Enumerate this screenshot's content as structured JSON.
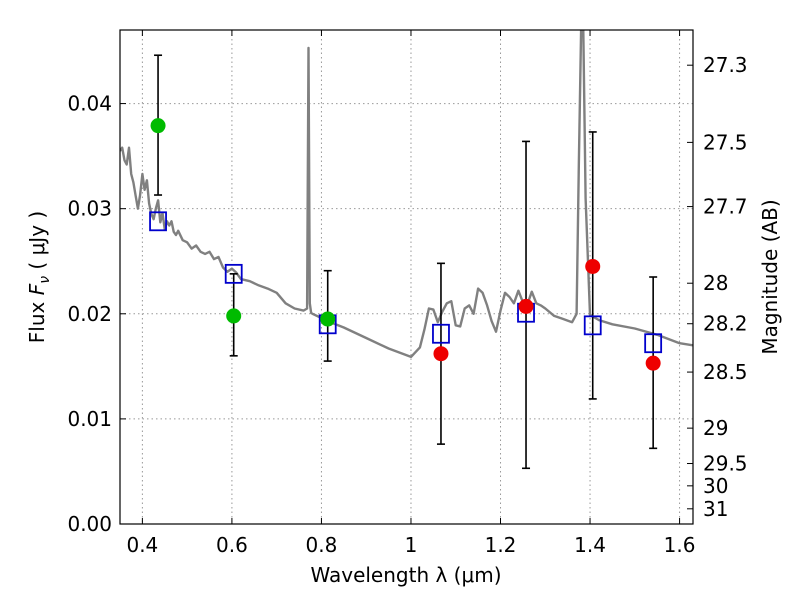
{
  "chart_data": {
    "type": "scatter",
    "xlabel": "Wavelength  λ (μm)",
    "ylabel": "Flux  F_ν  ( μJy )",
    "ylabel_parts": {
      "pre": "Flux  ",
      "sym": "F",
      "sub": "ν",
      "post": "  ( μJy )"
    },
    "y2label": "Magnitude (AB)",
    "xlim": [
      0.35,
      1.63
    ],
    "ylim": [
      0.0,
      0.047
    ],
    "grid": true,
    "x_ticks": [
      0.4,
      0.6,
      0.8,
      1.0,
      1.2,
      1.4,
      1.6
    ],
    "x_tick_labels": [
      "0.4",
      "0.6",
      "0.8",
      "1",
      "1.2",
      "1.4",
      "1.6"
    ],
    "y_ticks": [
      0.0,
      0.01,
      0.02,
      0.03,
      0.04
    ],
    "y_tick_labels": [
      "0.00",
      "0.01",
      "0.02",
      "0.03",
      "0.04"
    ],
    "y2_ticks": [
      "27.3",
      "27.5",
      "27.7",
      "28",
      "28.2",
      "28.5",
      "29",
      "29.5",
      "30",
      "31"
    ],
    "colors": {
      "model": "#808080",
      "model_points": "#0000cc",
      "detections": "#00bb00",
      "upper": "#ee0000",
      "errorbar": "#000000",
      "grid": "#999999"
    },
    "errorbars": [
      {
        "x": 0.435,
        "low": 0.0313,
        "high": 0.0446
      },
      {
        "x": 0.604,
        "low": 0.016,
        "high": 0.0238
      },
      {
        "x": 0.814,
        "low": 0.0155,
        "high": 0.0241
      },
      {
        "x": 1.067,
        "low": 0.0076,
        "high": 0.0248
      },
      {
        "x": 1.257,
        "low": 0.0053,
        "high": 0.0364
      },
      {
        "x": 1.406,
        "low": 0.0119,
        "high": 0.0373
      },
      {
        "x": 1.541,
        "low": 0.0072,
        "high": 0.0235
      }
    ],
    "series": [
      {
        "kind": "line",
        "x": [
          0.35,
          0.355,
          0.36,
          0.365,
          0.37,
          0.375,
          0.38,
          0.385,
          0.39,
          0.395,
          0.4,
          0.405,
          0.41,
          0.415,
          0.42,
          0.425,
          0.43,
          0.435,
          0.44,
          0.445,
          0.45,
          0.455,
          0.46,
          0.465,
          0.47,
          0.475,
          0.48,
          0.49,
          0.5,
          0.51,
          0.52,
          0.53,
          0.54,
          0.55,
          0.56,
          0.57,
          0.58,
          0.59,
          0.6,
          0.61,
          0.62,
          0.64,
          0.66,
          0.68,
          0.7,
          0.72,
          0.74,
          0.76,
          0.768,
          0.771,
          0.774,
          0.777,
          0.78,
          0.8,
          0.82,
          0.85,
          0.9,
          0.95,
          1.0,
          1.02,
          1.03,
          1.04,
          1.05,
          1.06,
          1.07,
          1.08,
          1.09,
          1.1,
          1.11,
          1.12,
          1.13,
          1.14,
          1.15,
          1.16,
          1.17,
          1.18,
          1.19,
          1.2,
          1.21,
          1.22,
          1.23,
          1.24,
          1.25,
          1.26,
          1.27,
          1.28,
          1.29,
          1.3,
          1.32,
          1.34,
          1.36,
          1.37,
          1.375,
          1.38,
          1.385,
          1.39,
          1.4,
          1.42,
          1.45,
          1.5,
          1.55,
          1.6,
          1.63
        ],
        "y": [
          0.0355,
          0.0358,
          0.0346,
          0.0342,
          0.0358,
          0.0333,
          0.0325,
          0.0312,
          0.03,
          0.0313,
          0.0333,
          0.0318,
          0.0327,
          0.0305,
          0.0295,
          0.029,
          0.03,
          0.0308,
          0.0287,
          0.0296,
          0.028,
          0.0288,
          0.0284,
          0.0288,
          0.0278,
          0.0275,
          0.0279,
          0.027,
          0.0268,
          0.0262,
          0.0265,
          0.0259,
          0.0257,
          0.0259,
          0.0252,
          0.0254,
          0.0244,
          0.024,
          0.0243,
          0.0239,
          0.0233,
          0.0231,
          0.0227,
          0.0224,
          0.022,
          0.021,
          0.0205,
          0.0203,
          0.0205,
          0.0453,
          0.021,
          0.0201,
          0.02,
          0.0196,
          0.0192,
          0.0187,
          0.0177,
          0.0167,
          0.0159,
          0.0168,
          0.0185,
          0.0205,
          0.0204,
          0.0192,
          0.0202,
          0.021,
          0.0212,
          0.0189,
          0.0188,
          0.0205,
          0.0208,
          0.02,
          0.0224,
          0.022,
          0.0208,
          0.0193,
          0.0183,
          0.0203,
          0.022,
          0.0216,
          0.021,
          0.0222,
          0.0211,
          0.0209,
          0.0221,
          0.021,
          0.0208,
          0.0205,
          0.0198,
          0.0195,
          0.0192,
          0.02,
          0.034,
          0.047,
          0.047,
          0.031,
          0.0199,
          0.0194,
          0.019,
          0.0186,
          0.018,
          0.0172,
          0.017
        ]
      },
      {
        "name": "",
        "kind": "open-square",
        "x": [
          0.435,
          0.604,
          0.814,
          1.067,
          1.257,
          1.406,
          1.541
        ],
        "y": [
          0.0288,
          0.0238,
          0.019,
          0.0181,
          0.0201,
          0.0189,
          0.0172
        ]
      },
      {
        "name": "",
        "kind": "filled-circle-green",
        "x": [
          0.435,
          0.604,
          0.814
        ],
        "y": [
          0.0379,
          0.0198,
          0.0195
        ]
      },
      {
        "name": "",
        "kind": "filled-circle-red",
        "x": [
          1.067,
          1.257,
          1.406,
          1.541
        ],
        "y": [
          0.0162,
          0.0207,
          0.0245,
          0.0153
        ]
      }
    ]
  }
}
